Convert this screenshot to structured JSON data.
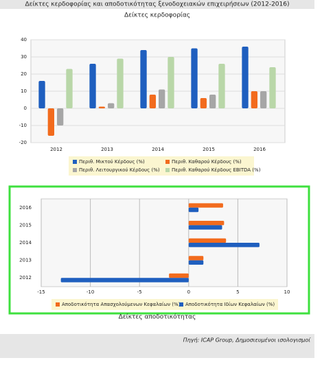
{
  "header": {
    "title": "Δείκτες κερδοφορίας και αποδοτικότητας ξενοδοχειακών επιχειρήσεων (2012-2016)"
  },
  "chart_data": [
    {
      "type": "bar",
      "title": "Δείκτες κερδοφορίας",
      "categories": [
        "2012",
        "2013",
        "2014",
        "2015",
        "2016"
      ],
      "series": [
        {
          "name": "Περιθ. Μικτού Κέρδους (%)",
          "color": "#1f5fbf",
          "values": [
            16,
            26,
            34,
            35,
            36
          ]
        },
        {
          "name": "Περιθ. Καθαρού Κέρδους (%)",
          "color": "#f26b1d",
          "values": [
            -16,
            1,
            8,
            6,
            10
          ]
        },
        {
          "name": "Περιθ. Λειτουργικού Κέρδους (%)",
          "color": "#a6a6a6",
          "values": [
            -10,
            3,
            11,
            8,
            10
          ]
        },
        {
          "name": "Περιθ. Καθαρού Κέρδους EBITDA (%)",
          "color": "#b9d7a8",
          "values": [
            23,
            29,
            30,
            26,
            24
          ]
        }
      ],
      "ylim": [
        -20,
        40
      ],
      "yticks": [
        -20,
        -10,
        0,
        10,
        20,
        30,
        40
      ],
      "grid": true
    },
    {
      "type": "barh",
      "title": "Δείκτες αποδοτικότητας",
      "categories": [
        "2012",
        "2013",
        "2014",
        "2015",
        "2016"
      ],
      "series": [
        {
          "name": "Αποδοτικότητα Απασχολούμενων Κεφαλαίων (%)",
          "color": "#f26b1d",
          "values": [
            -2,
            1.5,
            3.8,
            3.6,
            3.5
          ]
        },
        {
          "name": "Αποδοτικότητα Ιδίων Κεφαλαίων (%)",
          "color": "#1f5fbf",
          "values": [
            -13,
            1.5,
            7.2,
            3.4,
            1
          ]
        }
      ],
      "xlim": [
        -15,
        10
      ],
      "xticks": [
        -15,
        -10,
        -5,
        0,
        5,
        10
      ],
      "grid": true
    }
  ],
  "source": "Πηγή: ICAP Group, Δημοσιευμένοι ισολογισμοί"
}
